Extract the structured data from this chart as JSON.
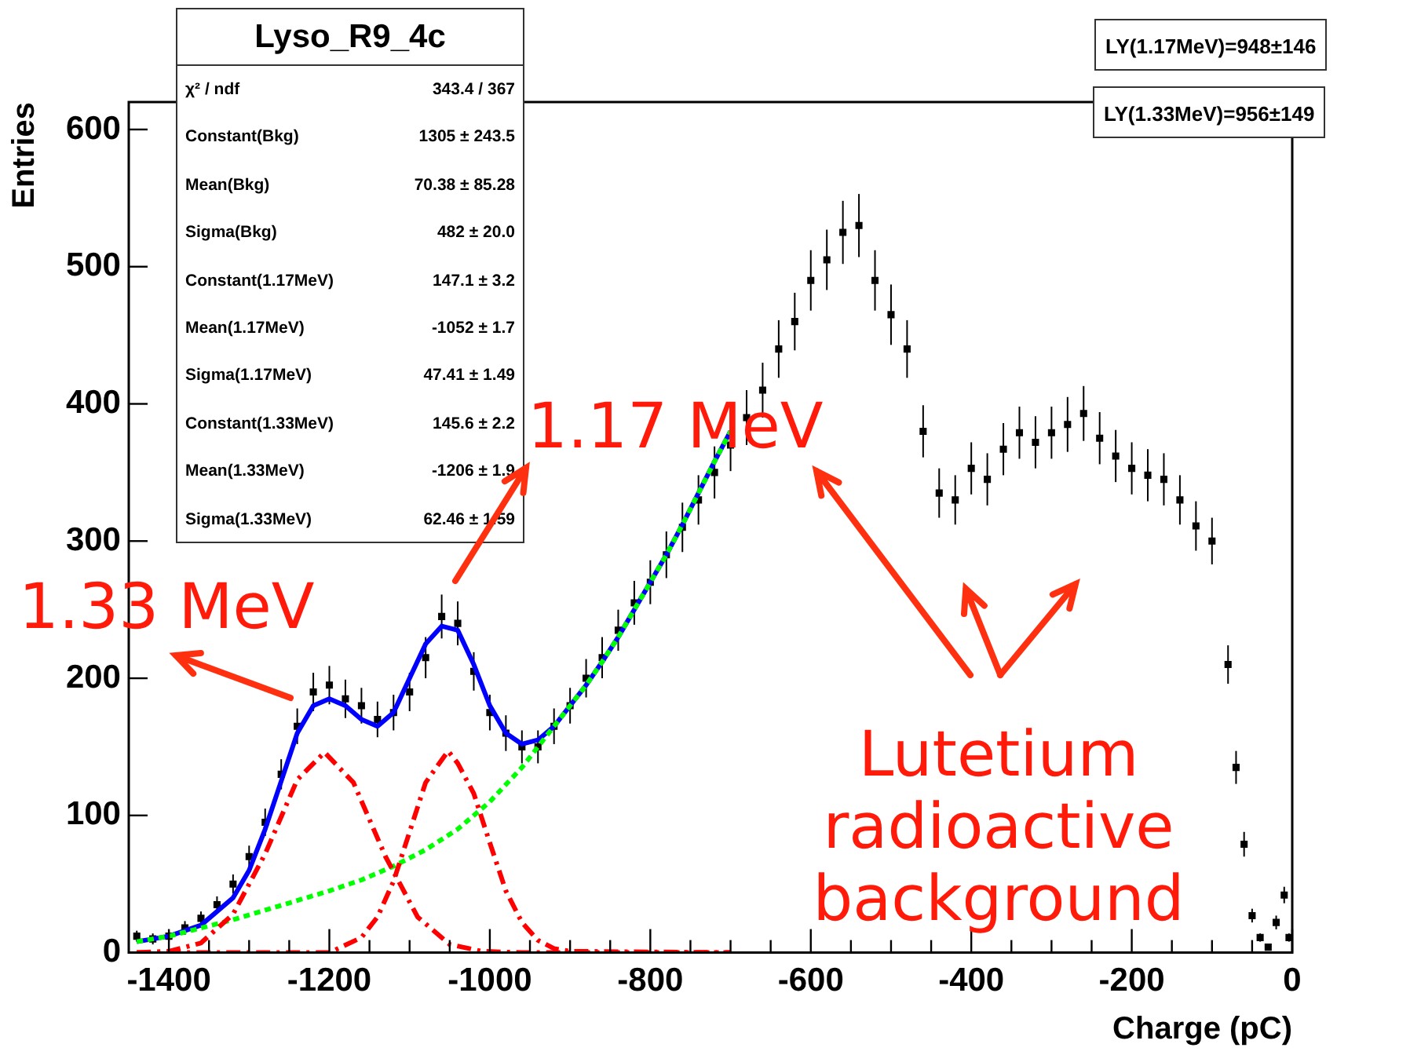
{
  "chart_data": {
    "type": "scatter",
    "title": "Lyso_R9_4c",
    "xlabel": "Charge (pC)",
    "ylabel": "Entries",
    "xlim": [
      -1450,
      0
    ],
    "xticks": [
      -1400,
      -1200,
      -1000,
      -800,
      -600,
      -400,
      -200,
      0
    ],
    "ylim": [
      0,
      620
    ],
    "yticks": [
      0,
      100,
      200,
      300,
      400,
      500,
      600
    ],
    "grid": false,
    "legend": false,
    "annotations": [
      "χ² / ndf\t343.4 / 367",
      "Constant(Bkg)\t1305 ± 243.5",
      "Mean(Bkg)\t70.38 ± 85.28",
      "Sigma(Bkg)\t482 ± 20.0",
      "Constant(1.17MeV)\t147.1 ± 3.2",
      "Mean(1.17MeV)\t-1052 ± 1.7",
      "Sigma(1.17MeV)\t47.41 ± 1.49",
      "Constant(1.33MeV)\t145.6 ± 2.2",
      "Mean(1.33MeV)\t-1206 ± 1.9",
      "Sigma(1.33MeV)\t62.46 ± 1.59",
      "LY(1.17MeV)=948±146",
      "LY(1.33MeV)=956±149",
      "1.33 MeV",
      "1.17 MeV",
      "Lutetium radioactive background"
    ],
    "series": [
      {
        "type": "scatter",
        "color": "#000000",
        "marker": "square",
        "x": [
          -1440,
          -1420,
          -1400,
          -1380,
          -1360,
          -1340,
          -1320,
          -1300,
          -1280,
          -1260,
          -1240,
          -1220,
          -1200,
          -1180,
          -1160,
          -1140,
          -1120,
          -1100,
          -1080,
          -1060,
          -1040,
          -1020,
          -1000,
          -980,
          -960,
          -940,
          -920,
          -900,
          -880,
          -860,
          -840,
          -820,
          -800,
          -780,
          -760,
          -740,
          -720,
          -700,
          -680,
          -660,
          -640,
          -620,
          -600,
          -580,
          -560,
          -540,
          -520,
          -500,
          -480,
          -460,
          -440,
          -420,
          -400,
          -380,
          -360,
          -340,
          -320,
          -300,
          -280,
          -260,
          -240,
          -220,
          -200,
          -180,
          -160,
          -140,
          -120,
          -100,
          -80,
          -70,
          -60,
          -50,
          -40,
          -30,
          -20,
          -10,
          -4
        ],
        "values": [
          12,
          10,
          12,
          18,
          25,
          35,
          50,
          70,
          95,
          130,
          165,
          190,
          195,
          185,
          180,
          170,
          175,
          190,
          215,
          245,
          240,
          205,
          175,
          160,
          150,
          150,
          165,
          180,
          200,
          215,
          235,
          255,
          270,
          290,
          310,
          330,
          350,
          370,
          390,
          410,
          440,
          460,
          490,
          505,
          525,
          530,
          490,
          465,
          440,
          380,
          335,
          330,
          353,
          345,
          367,
          379,
          372,
          379,
          385,
          393,
          375,
          362,
          353,
          348,
          345,
          330,
          311,
          300,
          210,
          135,
          79,
          27,
          11,
          4,
          22,
          42,
          11
        ],
        "errors": [
          4,
          4,
          4,
          5,
          5,
          6,
          7,
          8,
          10,
          11,
          13,
          14,
          14,
          14,
          13,
          13,
          13,
          14,
          15,
          16,
          16,
          14,
          13,
          13,
          12,
          12,
          13,
          13,
          14,
          15,
          15,
          16,
          16,
          17,
          18,
          18,
          19,
          19,
          20,
          20,
          21,
          21,
          22,
          22,
          23,
          23,
          22,
          22,
          21,
          19,
          18,
          18,
          19,
          19,
          19,
          19,
          19,
          19,
          20,
          20,
          19,
          19,
          19,
          19,
          19,
          18,
          18,
          17,
          14,
          12,
          9,
          5,
          3,
          2,
          5,
          6,
          3
        ]
      },
      {
        "type": "line",
        "color": "#0000ff",
        "line_style": "solid",
        "marker": "none",
        "x": [
          -1440,
          -1400,
          -1360,
          -1320,
          -1300,
          -1280,
          -1260,
          -1240,
          -1220,
          -1200,
          -1180,
          -1160,
          -1140,
          -1120,
          -1100,
          -1080,
          -1060,
          -1040,
          -1020,
          -1000,
          -980,
          -960,
          -940,
          -920,
          -900,
          -880,
          -860,
          -840,
          -820,
          -800,
          -780,
          -760,
          -740,
          -720,
          -700
        ],
        "values": [
          8,
          12,
          20,
          40,
          60,
          90,
          125,
          160,
          180,
          185,
          180,
          170,
          165,
          175,
          200,
          225,
          238,
          235,
          210,
          180,
          160,
          152,
          155,
          165,
          180,
          195,
          212,
          230,
          250,
          270,
          290,
          312,
          335,
          358,
          380
        ]
      },
      {
        "type": "line",
        "color": "#00ff00",
        "line_style": "dotted",
        "marker": "none",
        "x": [
          -1440,
          -1400,
          -1360,
          -1320,
          -1280,
          -1240,
          -1200,
          -1160,
          -1120,
          -1080,
          -1040,
          -1000,
          -960,
          -940,
          -900,
          -880,
          -860,
          -840,
          -820,
          -800,
          -780,
          -760,
          -740,
          -720,
          -700
        ],
        "values": [
          8,
          12,
          18,
          24,
          31,
          38,
          45,
          53,
          63,
          75,
          90,
          110,
          135,
          150,
          180,
          195,
          212,
          230,
          250,
          270,
          290,
          312,
          335,
          358,
          380
        ]
      },
      {
        "type": "line",
        "color": "#ff0000",
        "line_style": "dashed",
        "marker": "none",
        "x": [
          -1440,
          -1400,
          -1360,
          -1320,
          -1280,
          -1240,
          -1206,
          -1170,
          -1130,
          -1090,
          -1050,
          -1010,
          -960,
          -700
        ],
        "values": [
          0,
          1,
          7,
          28,
          72,
          126,
          146,
          124,
          70,
          26,
          6,
          1,
          0,
          0
        ]
      },
      {
        "type": "line",
        "color": "#ff0000",
        "line_style": "dashed",
        "marker": "none",
        "x": [
          -1440,
          -1200,
          -1160,
          -1140,
          -1120,
          -1100,
          -1080,
          -1052,
          -1040,
          -1020,
          -1000,
          -980,
          -960,
          -940,
          -920,
          -900,
          -700
        ],
        "values": [
          0,
          0,
          11,
          26,
          52,
          88,
          124,
          147,
          138,
          116,
          80,
          45,
          22,
          9,
          3,
          1,
          0
        ]
      }
    ]
  }
}
